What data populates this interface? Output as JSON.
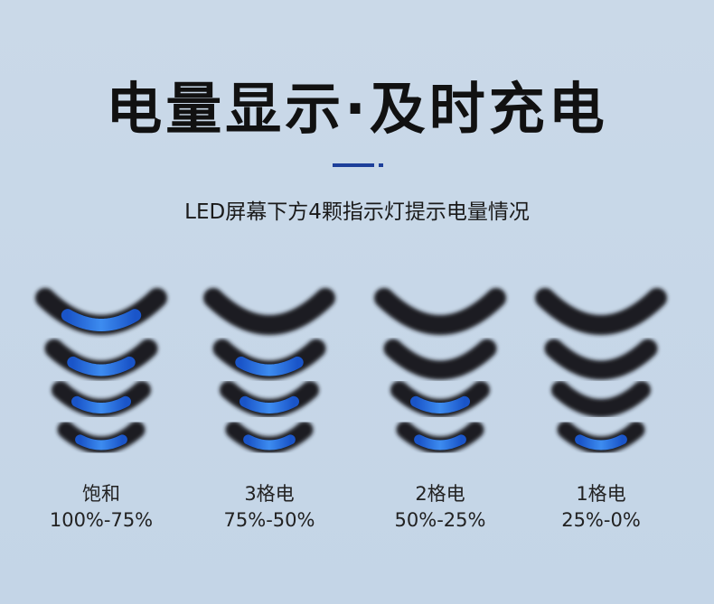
{
  "header": {
    "title": "电量显示·及时充电",
    "subtitle": "LED屏幕下方4颗指示灯提示电量情况"
  },
  "items": [
    {
      "label": "饱和",
      "range": "100%-75%",
      "lit": 4
    },
    {
      "label": "3格电",
      "range": "75%-50%",
      "lit": 3
    },
    {
      "label": "2格电",
      "range": "50%-25%",
      "lit": 2
    },
    {
      "label": "1格电",
      "range": "25%-0%",
      "lit": 1
    }
  ]
}
